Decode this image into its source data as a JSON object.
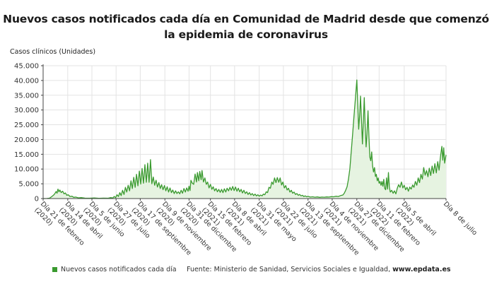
{
  "chart_data": {
    "type": "area",
    "title": "Nuevos casos notificados cada día en Comunidad de Madrid desde que comenzó la epidemia de coronavirus",
    "ylabel": "Casos clínicos (Unidades)",
    "xlabel": "",
    "ylim": [
      0,
      45000
    ],
    "yticks": [
      0,
      5000,
      10000,
      15000,
      20000,
      25000,
      30000,
      35000,
      40000,
      45000
    ],
    "ytick_labels": [
      "0",
      "5.000",
      "10.000",
      "15.000",
      "20.000",
      "25.000",
      "30.000",
      "35.000",
      "40.000",
      "45.000"
    ],
    "x_start": "2020-02-21",
    "x_end": "2022-07-08",
    "xtick_days": [
      0,
      53,
      105,
      157,
      209,
      262,
      314,
      360,
      412,
      465,
      517,
      570,
      622,
      675,
      723,
      777,
      867
    ],
    "xtick_labels": [
      [
        "Día 21 de febrero",
        "(2020)"
      ],
      [
        "Día 14 de abril",
        "(2020)"
      ],
      [
        "Día 5 de junio",
        "(2020)"
      ],
      [
        "Día 27 de julio",
        "(2020)"
      ],
      [
        "Día 17 de septiembre",
        "(2020)"
      ],
      [
        "Día 9 de noviembre",
        "(2020)"
      ],
      [
        "Día 31 de diciembre",
        "(2020)"
      ],
      [
        "Día 15 de febrero",
        "(2021)"
      ],
      [
        "Día 8 de abril",
        "(2021)"
      ],
      [
        "Día 31 de mayo",
        "(2021)"
      ],
      [
        "Día 22 de julio",
        "(2021)"
      ],
      [
        "Día 13 de septiembre",
        "(2021)"
      ],
      [
        "Día 4 de noviembre",
        "(2021)"
      ],
      [
        "Día 27 de diciembre",
        "(2021)"
      ],
      [
        "Día 11 de febrero",
        "(2022)"
      ],
      [
        "Día 5 de abril",
        "(2022)"
      ],
      [
        "Día 8 de julio",
        ""
      ]
    ],
    "grid": true,
    "legend_position": "bottom-left",
    "series": [
      {
        "name": "Nuevos casos notificados cada día",
        "color": "#3a9a2f",
        "fill": "#e6f3e1",
        "points_day_value": [
          [
            0,
            0
          ],
          [
            8,
            20
          ],
          [
            14,
            150
          ],
          [
            18,
            600
          ],
          [
            22,
            1100
          ],
          [
            25,
            1600
          ],
          [
            28,
            2400
          ],
          [
            30,
            1800
          ],
          [
            32,
            3200
          ],
          [
            34,
            2300
          ],
          [
            36,
            2900
          ],
          [
            39,
            2000
          ],
          [
            42,
            2500
          ],
          [
            45,
            1600
          ],
          [
            48,
            1900
          ],
          [
            51,
            1100
          ],
          [
            54,
            1300
          ],
          [
            58,
            700
          ],
          [
            62,
            800
          ],
          [
            66,
            400
          ],
          [
            70,
            500
          ],
          [
            76,
            250
          ],
          [
            82,
            300
          ],
          [
            90,
            150
          ],
          [
            100,
            120
          ],
          [
            110,
            200
          ],
          [
            120,
            100
          ],
          [
            130,
            150
          ],
          [
            140,
            120
          ],
          [
            145,
            300
          ],
          [
            150,
            200
          ],
          [
            153,
            700
          ],
          [
            156,
            300
          ],
          [
            159,
            1300
          ],
          [
            162,
            700
          ],
          [
            165,
            2000
          ],
          [
            168,
            1000
          ],
          [
            171,
            2800
          ],
          [
            174,
            1400
          ],
          [
            177,
            3800
          ],
          [
            180,
            2200
          ],
          [
            183,
            4500
          ],
          [
            186,
            2600
          ],
          [
            189,
            6000
          ],
          [
            192,
            3400
          ],
          [
            195,
            7200
          ],
          [
            198,
            3800
          ],
          [
            201,
            8200
          ],
          [
            204,
            4300
          ],
          [
            207,
            9300
          ],
          [
            210,
            4900
          ],
          [
            213,
            10200
          ],
          [
            216,
            5200
          ],
          [
            219,
            11500
          ],
          [
            222,
            5500
          ],
          [
            225,
            12000
          ],
          [
            228,
            5500
          ],
          [
            231,
            13200
          ],
          [
            234,
            5000
          ],
          [
            237,
            7300
          ],
          [
            240,
            4500
          ],
          [
            243,
            6200
          ],
          [
            246,
            3900
          ],
          [
            249,
            5400
          ],
          [
            252,
            3400
          ],
          [
            255,
            4700
          ],
          [
            258,
            3000
          ],
          [
            261,
            4400
          ],
          [
            264,
            2600
          ],
          [
            267,
            4000
          ],
          [
            270,
            2200
          ],
          [
            273,
            3600
          ],
          [
            276,
            2000
          ],
          [
            279,
            2900
          ],
          [
            282,
            1700
          ],
          [
            285,
            2600
          ],
          [
            288,
            1700
          ],
          [
            291,
            2300
          ],
          [
            294,
            1600
          ],
          [
            297,
            2800
          ],
          [
            300,
            1800
          ],
          [
            303,
            3400
          ],
          [
            306,
            2200
          ],
          [
            309,
            3600
          ],
          [
            312,
            2500
          ],
          [
            314,
            4200
          ],
          [
            316,
            2700
          ],
          [
            318,
            6200
          ],
          [
            321,
            5200
          ],
          [
            324,
            4800
          ],
          [
            327,
            8300
          ],
          [
            330,
            5600
          ],
          [
            332,
            8800
          ],
          [
            335,
            6000
          ],
          [
            337,
            9200
          ],
          [
            340,
            6400
          ],
          [
            342,
            9500
          ],
          [
            345,
            5600
          ],
          [
            348,
            7000
          ],
          [
            351,
            4800
          ],
          [
            354,
            5600
          ],
          [
            357,
            3600
          ],
          [
            360,
            4800
          ],
          [
            363,
            3100
          ],
          [
            366,
            4000
          ],
          [
            369,
            2600
          ],
          [
            372,
            3400
          ],
          [
            375,
            2300
          ],
          [
            378,
            3100
          ],
          [
            381,
            2100
          ],
          [
            384,
            3100
          ],
          [
            387,
            2000
          ],
          [
            390,
            3300
          ],
          [
            393,
            2200
          ],
          [
            396,
            3500
          ],
          [
            399,
            2600
          ],
          [
            402,
            3800
          ],
          [
            405,
            2800
          ],
          [
            408,
            4100
          ],
          [
            411,
            2700
          ],
          [
            414,
            3900
          ],
          [
            417,
            2500
          ],
          [
            420,
            3500
          ],
          [
            423,
            2300
          ],
          [
            426,
            3100
          ],
          [
            429,
            1900
          ],
          [
            432,
            2800
          ],
          [
            435,
            1700
          ],
          [
            438,
            2300
          ],
          [
            441,
            1400
          ],
          [
            444,
            2000
          ],
          [
            447,
            1200
          ],
          [
            450,
            1700
          ],
          [
            453,
            1000
          ],
          [
            456,
            1500
          ],
          [
            459,
            900
          ],
          [
            462,
            1300
          ],
          [
            465,
            800
          ],
          [
            468,
            1200
          ],
          [
            471,
            900
          ],
          [
            474,
            1500
          ],
          [
            477,
            1300
          ],
          [
            480,
            2300
          ],
          [
            483,
            2000
          ],
          [
            486,
            3800
          ],
          [
            489,
            3500
          ],
          [
            492,
            5600
          ],
          [
            495,
            4800
          ],
          [
            498,
            7000
          ],
          [
            501,
            5400
          ],
          [
            504,
            7100
          ],
          [
            507,
            5500
          ],
          [
            510,
            7000
          ],
          [
            513,
            4600
          ],
          [
            516,
            5600
          ],
          [
            519,
            3600
          ],
          [
            522,
            4400
          ],
          [
            525,
            2900
          ],
          [
            528,
            3500
          ],
          [
            531,
            2200
          ],
          [
            534,
            2800
          ],
          [
            537,
            1800
          ],
          [
            540,
            2200
          ],
          [
            543,
            1400
          ],
          [
            546,
            1700
          ],
          [
            549,
            1100
          ],
          [
            552,
            1400
          ],
          [
            555,
            900
          ],
          [
            558,
            1100
          ],
          [
            561,
            700
          ],
          [
            564,
            900
          ],
          [
            567,
            600
          ],
          [
            570,
            750
          ],
          [
            575,
            500
          ],
          [
            580,
            600
          ],
          [
            585,
            450
          ],
          [
            590,
            550
          ],
          [
            595,
            400
          ],
          [
            600,
            500
          ],
          [
            605,
            450
          ],
          [
            610,
            550
          ],
          [
            615,
            500
          ],
          [
            620,
            650
          ],
          [
            625,
            600
          ],
          [
            630,
            800
          ],
          [
            635,
            700
          ],
          [
            640,
            1000
          ],
          [
            645,
            1200
          ],
          [
            648,
            1800
          ],
          [
            651,
            2800
          ],
          [
            654,
            4000
          ],
          [
            657,
            6500
          ],
          [
            660,
            10000
          ],
          [
            663,
            16000
          ],
          [
            666,
            22000
          ],
          [
            669,
            28000
          ],
          [
            672,
            34000
          ],
          [
            675,
            40200
          ],
          [
            677,
            32000
          ],
          [
            679,
            23500
          ],
          [
            681,
            28000
          ],
          [
            683,
            34700
          ],
          [
            685,
            27000
          ],
          [
            687,
            18500
          ],
          [
            689,
            26000
          ],
          [
            691,
            34200
          ],
          [
            693,
            24500
          ],
          [
            695,
            17500
          ],
          [
            697,
            22000
          ],
          [
            699,
            29700
          ],
          [
            701,
            21000
          ],
          [
            703,
            14000
          ],
          [
            705,
            12800
          ],
          [
            707,
            15800
          ],
          [
            709,
            11000
          ],
          [
            711,
            9000
          ],
          [
            713,
            10500
          ],
          [
            715,
            7500
          ],
          [
            717,
            8200
          ],
          [
            719,
            6000
          ],
          [
            721,
            7000
          ],
          [
            723,
            5200
          ],
          [
            725,
            5800
          ],
          [
            727,
            4500
          ],
          [
            729,
            5800
          ],
          [
            731,
            4200
          ],
          [
            733,
            6500
          ],
          [
            735,
            3500
          ],
          [
            737,
            3000
          ],
          [
            739,
            7000
          ],
          [
            741,
            3200
          ],
          [
            743,
            8800
          ],
          [
            745,
            4000
          ],
          [
            747,
            2200
          ],
          [
            750,
            2800
          ],
          [
            753,
            1800
          ],
          [
            756,
            2600
          ],
          [
            759,
            1600
          ],
          [
            762,
            3500
          ],
          [
            765,
            4700
          ],
          [
            768,
            3800
          ],
          [
            771,
            5600
          ],
          [
            774,
            3600
          ],
          [
            777,
            4500
          ],
          [
            780,
            3000
          ],
          [
            783,
            3800
          ],
          [
            786,
            2500
          ],
          [
            789,
            3900
          ],
          [
            792,
            3200
          ],
          [
            795,
            4600
          ],
          [
            798,
            3800
          ],
          [
            801,
            5800
          ],
          [
            804,
            4500
          ],
          [
            807,
            7000
          ],
          [
            810,
            5400
          ],
          [
            813,
            8200
          ],
          [
            816,
            6600
          ],
          [
            819,
            10500
          ],
          [
            822,
            7900
          ],
          [
            825,
            9500
          ],
          [
            828,
            7400
          ],
          [
            831,
            10300
          ],
          [
            834,
            7800
          ],
          [
            837,
            11000
          ],
          [
            840,
            8500
          ],
          [
            843,
            11800
          ],
          [
            846,
            8700
          ],
          [
            849,
            12500
          ],
          [
            852,
            9600
          ],
          [
            855,
            14200
          ],
          [
            858,
            17700
          ],
          [
            860,
            13000
          ],
          [
            862,
            17200
          ],
          [
            864,
            12000
          ],
          [
            867,
            14800
          ]
        ]
      }
    ]
  },
  "legend": {
    "label": "Nuevos casos notificados cada día"
  },
  "source": {
    "prefix": "Fuente: Ministerio de Sanidad, Servicios Sociales e Igualdad, ",
    "site": "www.epdata.es"
  }
}
